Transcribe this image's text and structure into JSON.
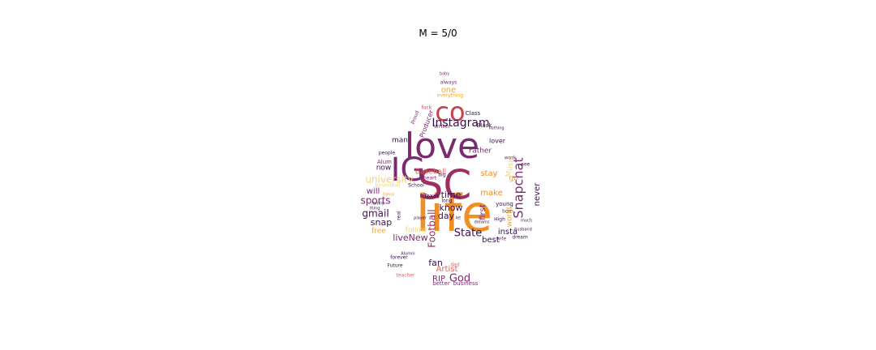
{
  "title": "M = 5/0",
  "palette": {
    "dark": "#3b0f4f",
    "purple": "#7a2a6e",
    "magenta": "#9c2f5f",
    "red": "#c8414d",
    "coral": "#e0655a",
    "orange": "#f08f22",
    "gold": "#f4a530",
    "yellow": "#f7d36a"
  },
  "words": [
    {
      "text": "life",
      "color": "orange"
    },
    {
      "text": "SC",
      "color": "magenta"
    },
    {
      "text": "love",
      "color": "purple"
    },
    {
      "text": "IG",
      "color": "purple"
    },
    {
      "text": "co",
      "color": "red"
    },
    {
      "text": "Instagram",
      "color": "dark"
    },
    {
      "text": "Snapchat",
      "color": "purple"
    },
    {
      "text": "sports",
      "color": "purple"
    },
    {
      "text": "gmail",
      "color": "dark"
    },
    {
      "text": "snap",
      "color": "dark"
    },
    {
      "text": "State",
      "color": "dark"
    },
    {
      "text": "Football",
      "color": "magenta"
    },
    {
      "text": "God",
      "color": "purple"
    },
    {
      "text": "fan",
      "color": "dark"
    },
    {
      "text": "Artist",
      "color": "coral"
    },
    {
      "text": "RIP",
      "color": "purple"
    },
    {
      "text": "liveNew",
      "color": "purple"
    },
    {
      "text": "time",
      "color": "dark"
    },
    {
      "text": "know",
      "color": "dark"
    },
    {
      "text": "day",
      "color": "dark"
    },
    {
      "text": "make",
      "color": "orange"
    },
    {
      "text": "stay",
      "color": "orange"
    },
    {
      "text": "never",
      "color": "dark"
    },
    {
      "text": "insta",
      "color": "dark"
    },
    {
      "text": "best",
      "color": "dark"
    },
    {
      "text": "first",
      "color": "purple"
    },
    {
      "text": "one",
      "color": "gold"
    },
    {
      "text": "man",
      "color": "dark"
    },
    {
      "text": "now",
      "color": "dark"
    },
    {
      "text": "will",
      "color": "purple"
    },
    {
      "text": "Baseball",
      "color": "coral"
    },
    {
      "text": "Father",
      "color": "purple"
    },
    {
      "text": "lover",
      "color": "dark"
    },
    {
      "text": "Producer",
      "color": "purple"
    },
    {
      "text": "free",
      "color": "gold"
    },
    {
      "text": "follow",
      "color": "yellow"
    },
    {
      "text": "university",
      "color": "yellow"
    },
    {
      "text": "world",
      "color": "gold"
    },
    {
      "text": "Music",
      "color": "yellow"
    },
    {
      "text": "go",
      "color": "gold"
    },
    {
      "text": "better",
      "color": "purple"
    },
    {
      "text": "business",
      "color": "purple"
    },
    {
      "text": "Texas",
      "color": "dark"
    },
    {
      "text": "School",
      "color": "dark"
    },
    {
      "text": "Alum",
      "color": "purple"
    },
    {
      "text": "writer",
      "color": "purple"
    },
    {
      "text": "Black",
      "color": "dark"
    },
    {
      "text": "Class",
      "color": "dark"
    },
    {
      "text": "always",
      "color": "purple"
    },
    {
      "text": "everything",
      "color": "gold"
    },
    {
      "text": "fuck",
      "color": "red"
    },
    {
      "text": "Proud",
      "color": "purple"
    },
    {
      "text": "people",
      "color": "dark"
    },
    {
      "text": "forever",
      "color": "dark"
    },
    {
      "text": "Future",
      "color": "dark"
    },
    {
      "text": "teacher",
      "color": "coral"
    },
    {
      "text": "Alumni",
      "color": "dark"
    },
    {
      "text": "young",
      "color": "dark"
    },
    {
      "text": "born",
      "color": "purple"
    },
    {
      "text": "dream",
      "color": "dark"
    },
    {
      "text": "wife",
      "color": "purple"
    },
    {
      "text": "High",
      "color": "dark"
    },
    {
      "text": "heart",
      "color": "purple"
    },
    {
      "text": "big",
      "color": "dark"
    },
    {
      "text": "long",
      "color": "dark"
    },
    {
      "text": "basketball",
      "color": "yellow"
    },
    {
      "text": "family",
      "color": "dark"
    },
    {
      "text": "thing",
      "color": "dark"
    },
    {
      "text": "see",
      "color": "dark"
    },
    {
      "text": "dad",
      "color": "coral"
    },
    {
      "text": "player",
      "color": "dark"
    },
    {
      "text": "real",
      "color": "dark"
    },
    {
      "text": "work",
      "color": "purple"
    },
    {
      "text": "nothing",
      "color": "dark"
    },
    {
      "text": "baby",
      "color": "purple"
    },
    {
      "text": "friend",
      "color": "gold"
    },
    {
      "text": "much",
      "color": "dark"
    },
    {
      "text": "husband",
      "color": "dark"
    },
    {
      "text": "dreams",
      "color": "dark"
    },
    {
      "text": "let",
      "color": "dark"
    }
  ]
}
